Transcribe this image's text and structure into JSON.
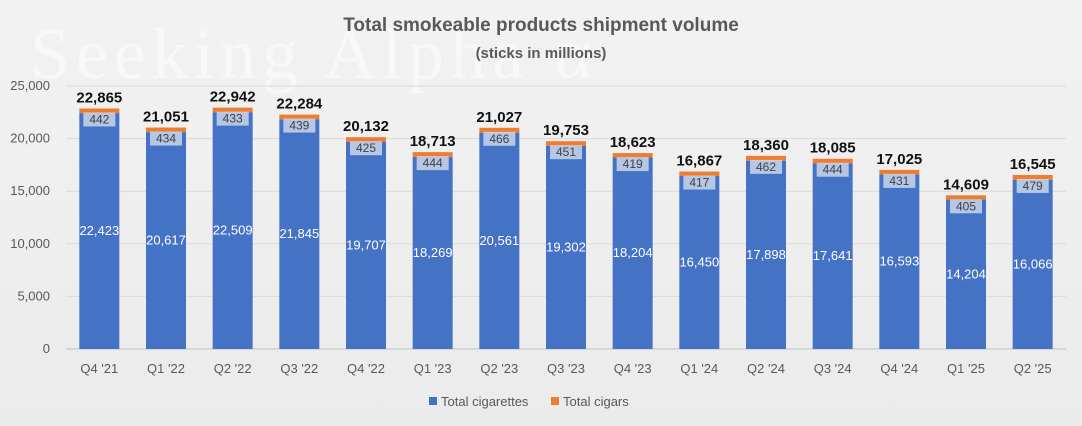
{
  "chart_data": {
    "type": "bar",
    "stacked": true,
    "title": "Total smokeable products shipment volume",
    "subtitle": "(sticks in millions)",
    "xlabel": "",
    "ylabel": "",
    "ylim": [
      0,
      25000
    ],
    "yticks": [
      0,
      5000,
      10000,
      15000,
      20000,
      25000
    ],
    "ytick_labels": [
      "0",
      "5,000",
      "10,000",
      "15,000",
      "20,000",
      "25,000"
    ],
    "grid": true,
    "legend_position": "bottom",
    "categories": [
      "Q4 '21",
      "Q1 '22",
      "Q2 '22",
      "Q3 '22",
      "Q4 '22",
      "Q1 '23",
      "Q2 '23",
      "Q3 '23",
      "Q4 '23",
      "Q1 '24",
      "Q2 '24",
      "Q3 '24",
      "Q4 '24",
      "Q1 '25",
      "Q2 '25"
    ],
    "series": [
      {
        "name": "Total cigarettes",
        "color": "#4472c4",
        "values": [
          22423,
          20617,
          22509,
          21845,
          19707,
          18269,
          20561,
          19302,
          18204,
          16450,
          17898,
          17641,
          16593,
          14204,
          16066
        ],
        "labels": [
          "22,423",
          "20,617",
          "22,509",
          "21,845",
          "19,707",
          "18,269",
          "20,561",
          "19,302",
          "18,204",
          "16,450",
          "17,898",
          "17,641",
          "16,593",
          "14,204",
          "16,066"
        ]
      },
      {
        "name": "Total cigars",
        "color": "#ed7d31",
        "values": [
          442,
          434,
          433,
          439,
          425,
          444,
          466,
          451,
          419,
          417,
          462,
          444,
          431,
          405,
          479
        ],
        "labels": [
          "442",
          "434",
          "433",
          "439",
          "425",
          "444",
          "466",
          "451",
          "419",
          "417",
          "462",
          "444",
          "431",
          "405",
          "479"
        ]
      }
    ],
    "totals": [
      22865,
      21051,
      22942,
      22284,
      20132,
      18713,
      21027,
      19753,
      18623,
      16867,
      18360,
      18085,
      17025,
      14609,
      16545
    ],
    "total_labels": [
      "22,865",
      "21,051",
      "22,942",
      "22,284",
      "20,132",
      "18,713",
      "21,027",
      "19,753",
      "18,623",
      "16,867",
      "18,360",
      "18,085",
      "17,025",
      "14,609",
      "16,545"
    ]
  },
  "watermark": "Seeking Alpha α",
  "colors": {
    "grid": "#d9d9d9",
    "axis": "#bfbfbf",
    "label_box": "#dce3f0"
  }
}
